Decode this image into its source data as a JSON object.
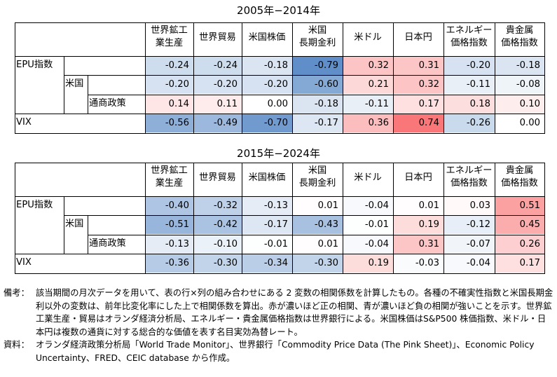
{
  "columns": [
    "世界鉱工\n業生産",
    "世界貿易",
    "米国株価",
    "米国\n長期金利",
    "米ドル",
    "日本円",
    "エネルギー\n価格指数",
    "貴金属\n価格指数"
  ],
  "row_labels": [
    "EPU指数",
    "米国",
    "通商政策",
    "VIX"
  ],
  "tables": [
    {
      "title": "2005年−2014年",
      "rows": [
        [
          "-0.24",
          "-0.24",
          "-0.18",
          "-0.79",
          "0.32",
          "0.31",
          "-0.20",
          "-0.18"
        ],
        [
          "-0.20",
          "-0.20",
          "-0.20",
          "-0.60",
          "0.21",
          "0.32",
          "-0.11",
          "-0.08"
        ],
        [
          "0.14",
          "0.11",
          "0.00",
          "-0.18",
          "-0.11",
          "0.17",
          "0.18",
          "0.10"
        ],
        [
          "-0.56",
          "-0.49",
          "-0.70",
          "-0.17",
          "0.36",
          "0.74",
          "-0.26",
          "0.00"
        ]
      ]
    },
    {
      "title": "2015年−2024年",
      "rows": [
        [
          "-0.40",
          "-0.32",
          "-0.13",
          "0.01",
          "-0.04",
          "0.01",
          "0.03",
          "0.51"
        ],
        [
          "-0.51",
          "-0.42",
          "-0.17",
          "-0.43",
          "-0.01",
          "0.19",
          "-0.12",
          "0.45"
        ],
        [
          "-0.13",
          "-0.10",
          "-0.01",
          "0.01",
          "-0.04",
          "0.31",
          "-0.07",
          "0.26"
        ],
        [
          "-0.36",
          "-0.30",
          "-0.34",
          "-0.30",
          "0.19",
          "-0.03",
          "-0.04",
          "0.17"
        ]
      ]
    }
  ],
  "notes": {
    "biko_label": "備考：",
    "biko_text": "該当期間の月次データを用いて、表の行×列の組み合わせにある 2 変数の相関係数を計算したもの。各種の不確実性指数と米国長期金利以外の変数は、前年比変化率にした上で相関係数を算出。赤が濃いほど正の相関、青が濃いほど負の相関が強いことを示す。世界鉱工業生産・貿易はオランダ経済分析局、エネルギー・貴金属価格指数は世界銀行による。米国株価はS&P500 株価指数、米ドル・日本円は複数の通貨に対する総合的な価値を表す名目実効為替レート。",
    "shiryo_label": "資料：",
    "shiryo_text": "オランダ経済政策分析局「World Trade Monitor」、世界銀行「Commodity Price Data (The Pink Sheet)」、Economic Policy Uncertainty、FRED、CEIC database から作成。"
  },
  "colors": {
    "positive": "#f8696b",
    "negative": "#5a8ac6",
    "neutral": "#ffffff"
  }
}
